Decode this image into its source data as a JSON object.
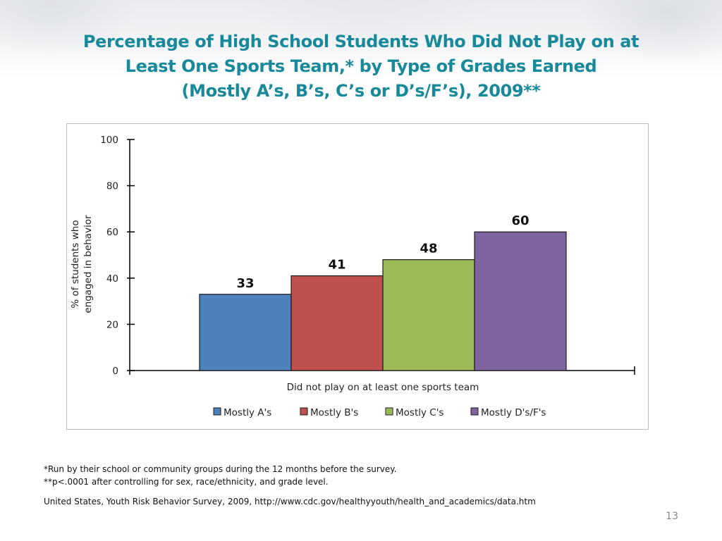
{
  "slide": {
    "title_lines": [
      "Percentage of High School Students Who Did Not Play on at",
      "Least One Sports Team,* by Type of Grades Earned",
      "(Mostly A’s, B’s, C’s or D’s/F’s), 2009**"
    ],
    "footnotes": [
      "*Run by their school or community groups during the 12 months before the survey.",
      "**p<.0001 after controlling for sex, race/ethnicity, and grade level."
    ],
    "source": "United States, Youth Risk Behavior Survey, 2009, http://www.cdc.gov/healthyyouth/health_and_academics/data.htm",
    "page_number": "13"
  },
  "chart_data": {
    "type": "bar",
    "title": "Percentage of High School Students Who Did Not Play on at Least One Sports Team,* by Type of Grades Earned (Mostly A’s, B’s, C’s or D’s/F’s), 2009**",
    "categories": [
      "Did not play on at least one sports team"
    ],
    "xlabel": "Did not play on at least one sports team",
    "ylabel_lines": [
      "% of students who",
      "engaged in behavior"
    ],
    "ylim": [
      0,
      100
    ],
    "yticks": [
      0,
      20,
      40,
      60,
      80,
      100
    ],
    "grid": false,
    "legend_position": "bottom",
    "series": [
      {
        "name": "Mostly A's",
        "values": [
          33
        ],
        "label": "33",
        "color": "#4f81bd"
      },
      {
        "name": "Mostly B's",
        "values": [
          41
        ],
        "label": "41",
        "color": "#c0504d"
      },
      {
        "name": "Mostly C's",
        "values": [
          48
        ],
        "label": "48",
        "color": "#9bbb59"
      },
      {
        "name": "Mostly D's/F's",
        "values": [
          60
        ],
        "label": "60",
        "color": "#8064a2"
      }
    ]
  }
}
